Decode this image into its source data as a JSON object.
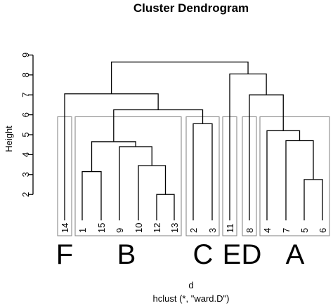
{
  "chart_data": {
    "type": "dendrogram",
    "title": "Cluster Dendrogram",
    "ylabel": "Height",
    "xlabel": "d",
    "sub": "hclust (*, \"ward.D\")",
    "ylim": [
      0,
      9
    ],
    "yticks": [
      2,
      3,
      4,
      5,
      6,
      7,
      8,
      9
    ],
    "leaves": [
      "14",
      "1",
      "15",
      "9",
      "10",
      "12",
      "13",
      "2",
      "3",
      "11",
      "8",
      "4",
      "7",
      "5",
      "6"
    ],
    "merges": [
      {
        "a": "12",
        "b": "13",
        "height": 2.0
      },
      {
        "a": "5",
        "b": "6",
        "height": 2.75
      },
      {
        "a": "1",
        "b": "15",
        "height": 3.15
      },
      {
        "a": "10",
        "b": "{12,13}",
        "height": 3.45
      },
      {
        "a": "9",
        "b": "{10,12,13}",
        "height": 4.4
      },
      {
        "a": "{1,15}",
        "b": "{9,10,12,13}",
        "height": 4.65
      },
      {
        "a": "7",
        "b": "{5,6}",
        "height": 4.7
      },
      {
        "a": "4",
        "b": "{7,5,6}",
        "height": 5.2
      },
      {
        "a": "2",
        "b": "3",
        "height": 5.55
      },
      {
        "a": "B",
        "b": "C",
        "height": 6.25
      },
      {
        "a": "8",
        "b": "A",
        "height": 7.0
      },
      {
        "a": "14",
        "b": "{B,C}",
        "height": 7.05
      },
      {
        "a": "11",
        "b": "{8,A}",
        "height": 8.05
      },
      {
        "a": "{14,B,C}",
        "b": "{11,8,A}",
        "height": 8.65
      }
    ],
    "clusters": [
      {
        "label": "F",
        "members": [
          "14"
        ]
      },
      {
        "label": "B",
        "members": [
          "1",
          "15",
          "9",
          "10",
          "12",
          "13"
        ]
      },
      {
        "label": "C",
        "members": [
          "2",
          "3"
        ]
      },
      {
        "label": "E",
        "members": [
          "11"
        ]
      },
      {
        "label": "D",
        "members": [
          "8"
        ]
      },
      {
        "label": "A",
        "members": [
          "4",
          "7",
          "5",
          "6"
        ]
      }
    ],
    "cut_height": 5.9
  },
  "colors": {
    "lines": "#000000",
    "boxes": "#8a8a8a",
    "background": "#ffffff"
  }
}
